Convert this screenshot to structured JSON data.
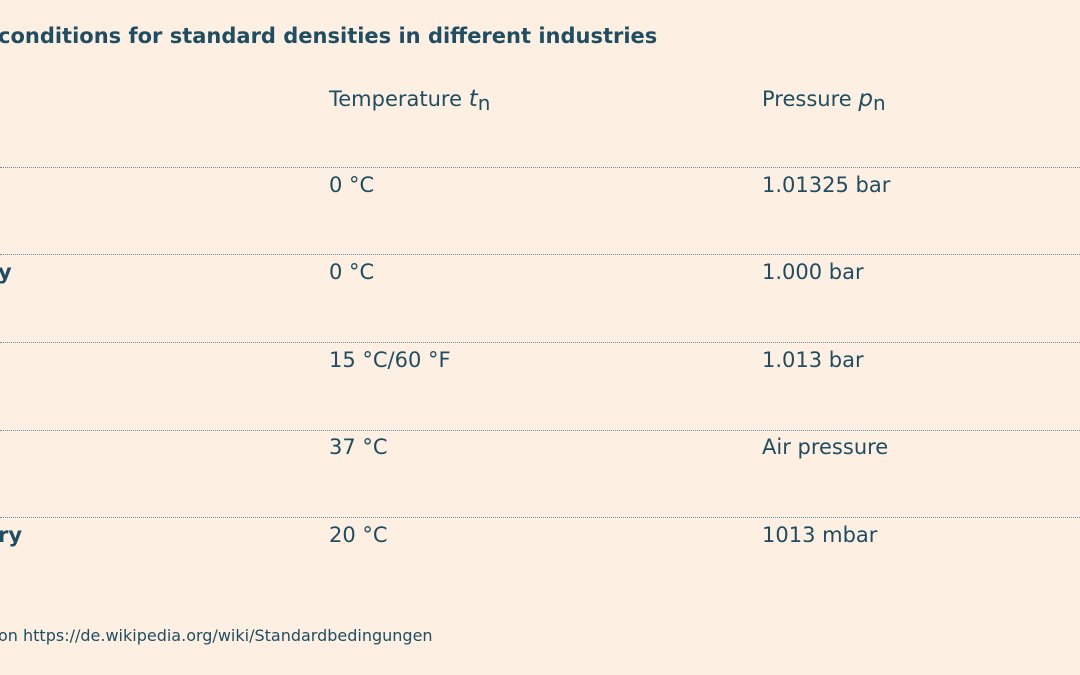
{
  "title": "conditions for standard densities in different industries",
  "header": {
    "temperature_label": "Temperature",
    "temperature_symbol": "t",
    "temperature_subscript": "n",
    "pressure_label": "Pressure",
    "pressure_symbol": "p",
    "pressure_subscript": "n"
  },
  "rows": [
    {
      "label": "",
      "temperature": "0 °C",
      "pressure": "1.01325 bar"
    },
    {
      "label": "y",
      "temperature": "0 °C",
      "pressure": "1.000 bar"
    },
    {
      "label": "",
      "temperature": "15 °C/60 °F",
      "pressure": "1.013 bar"
    },
    {
      "label": "",
      "temperature": "37 °C",
      "pressure": "Air pressure"
    },
    {
      "label": "ry",
      "temperature": "20 °C",
      "pressure": "1013 mbar"
    }
  ],
  "source": "on https://de.wikipedia.org/wiki/Standardbedingungen"
}
